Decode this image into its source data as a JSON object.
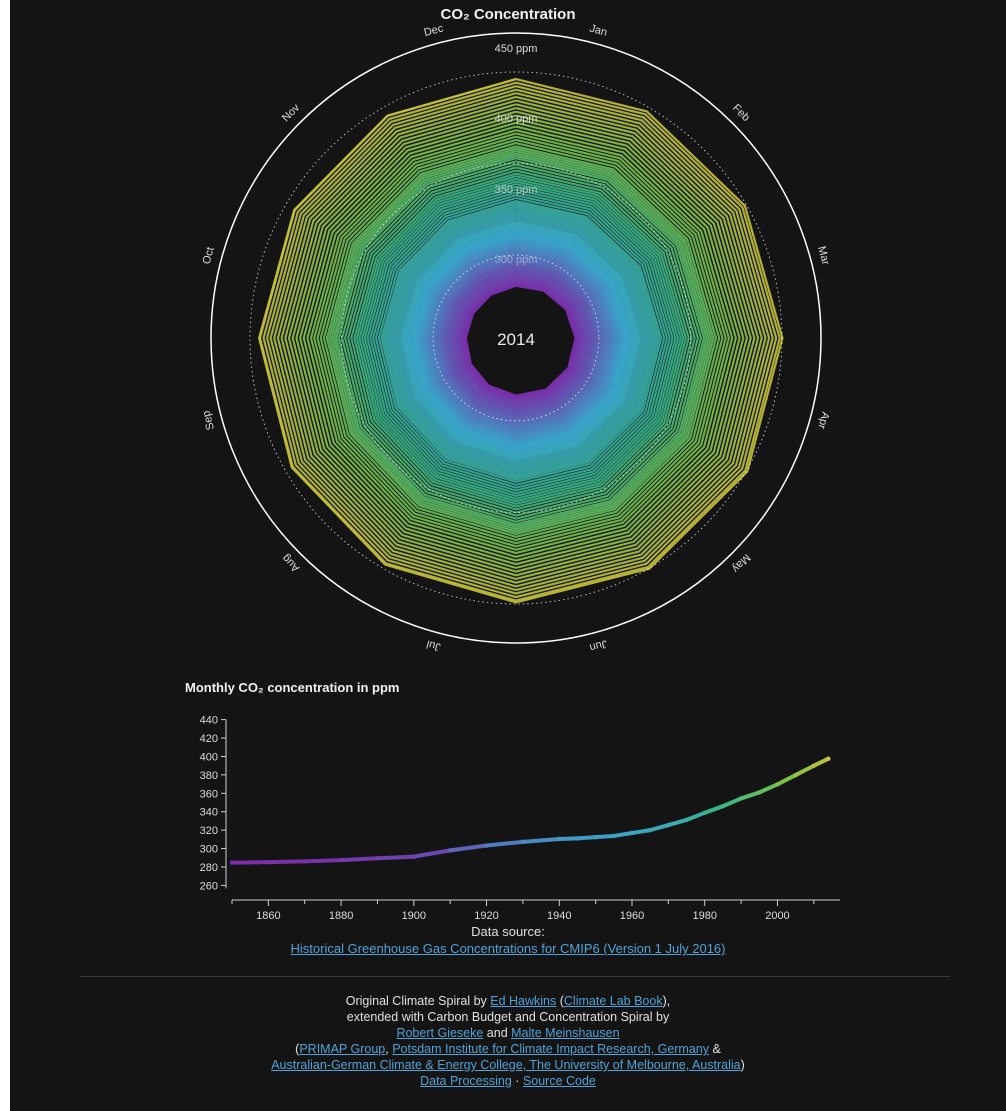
{
  "spiral": {
    "title": "CO₂ Concentration",
    "center_year": "2014",
    "months": [
      "Jan",
      "Feb",
      "Mar",
      "Apr",
      "May",
      "Jun",
      "Jul",
      "Aug",
      "Sep",
      "Oct",
      "Nov",
      "Dec"
    ],
    "ring_labels": [
      "300 ppm",
      "350 ppm",
      "400 ppm",
      "450 ppm"
    ],
    "colors": {
      "low": "#7a2ea8",
      "mid_low": "#3aa3c9",
      "mid": "#37b58b",
      "mid_high": "#7cc246",
      "high": "#c8c23a"
    }
  },
  "chart_data": {
    "type": "line",
    "title": "Monthly CO₂ concentration in ppm",
    "xlabel": "",
    "ylabel": "",
    "x_ticks": [
      1860,
      1880,
      1900,
      1920,
      1940,
      1960,
      1980,
      2000
    ],
    "y_ticks": [
      260,
      280,
      300,
      320,
      340,
      360,
      380,
      400,
      420,
      440
    ],
    "xlim": [
      1850,
      2015
    ],
    "ylim": [
      255,
      445
    ],
    "series": [
      {
        "x": [
          1850,
          1860,
          1870,
          1880,
          1890,
          1900,
          1910,
          1920,
          1930,
          1940,
          1945,
          1950,
          1955,
          1960,
          1965,
          1970,
          1975,
          1980,
          1985,
          1990,
          1995,
          2000,
          2005,
          2010,
          2014
        ],
        "y": [
          284.7,
          285.2,
          286.1,
          287.5,
          289.5,
          291.2,
          298,
          303.3,
          307.3,
          310.4,
          311,
          312.4,
          313.7,
          316.9,
          320,
          325.5,
          331.1,
          338.8,
          346,
          354.4,
          360.9,
          369.7,
          379.8,
          389.9,
          397.6
        ],
        "seasonal_amplitude_ppm": 3
      }
    ],
    "grid": false
  },
  "source": {
    "label": "Data source:",
    "link": "Historical Greenhouse Gas Concentrations for CMIP6 (Version 1 July 2016)"
  },
  "credits": {
    "l1_pre": "Original Climate Spiral by ",
    "l1_link1": "Ed Hawkins",
    "l1_mid": " (",
    "l1_link2": "Climate Lab Book",
    "l1_post": "),",
    "l2": "extended with Carbon Budget and Concentration Spiral by",
    "l3_link1": "Robert Gieseke",
    "l3_mid": " and ",
    "l3_link2": "Malte Meinshausen",
    "l4_pre": "(",
    "l4_link1": "PRIMAP Group",
    "l4_mid1": ", ",
    "l4_link2": "Potsdam Institute for Climate Impact Research, Germany",
    "l4_post": " &",
    "l5_link": "Australian-German Climate & Energy College, The University of Melbourne, Australia",
    "l5_post": ")",
    "l6_link1": "Data Processing",
    "l6_mid": " · ",
    "l6_link2": "Source Code"
  }
}
